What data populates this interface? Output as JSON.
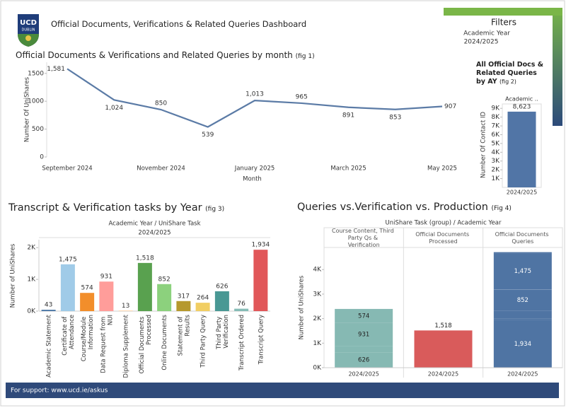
{
  "header": {
    "logo_text": "UCD",
    "logo_subtext": "DUBLIN",
    "title": "Official Documents, Verifications & Related Queries Dashboard"
  },
  "filters": {
    "title": "Filters",
    "label": "Academic Year",
    "value": "2024/2025"
  },
  "chart_data": [
    {
      "type": "line",
      "title": "Official Documents & Verifications and Related Queries by month",
      "figure_label": "(fig 1)",
      "categories": [
        "September 2024",
        null,
        "November 2024",
        null,
        "January 2025",
        null,
        "March 2025",
        null,
        "May 2025"
      ],
      "values": [
        1581,
        1024,
        850,
        539,
        1013,
        965,
        891,
        853,
        907
      ],
      "value_labels": [
        "1,581",
        "1,024",
        "850",
        "539",
        "1,013",
        "965",
        "891",
        "853",
        "907"
      ],
      "color": "#5b7ba6",
      "ylim": [
        0,
        1700
      ],
      "yticks": [
        0,
        500,
        1000,
        1500
      ],
      "y_label": "Number Of UniShares",
      "x_label": "Month"
    },
    {
      "type": "bar",
      "title": "All Official Docs & Related Queries by AY",
      "figure_label": "(fig 2)",
      "column_header": "Academic ..",
      "categories": [
        "2024/2025"
      ],
      "values": [
        8623
      ],
      "value_labels": [
        "8,623"
      ],
      "color": "#5175a6",
      "ylim": [
        0,
        9500
      ],
      "yticks": [
        {
          "value": 1000,
          "label": "1K"
        },
        {
          "value": 2000,
          "label": "2K"
        },
        {
          "value": 3000,
          "label": "3K"
        },
        {
          "value": 4000,
          "label": "4K"
        },
        {
          "value": 5000,
          "label": "5K"
        },
        {
          "value": 6000,
          "label": "6K"
        },
        {
          "value": 7000,
          "label": "7K"
        },
        {
          "value": 8000,
          "label": "8K"
        },
        {
          "value": 9000,
          "label": "9K"
        }
      ],
      "y_label": "Number Of Contact ID"
    },
    {
      "type": "bar",
      "title": "Transcript & Verification tasks by Year",
      "figure_label": "(fig 3)",
      "header": "Academic Year  /  UniShare Task",
      "column_header": "2024/2025",
      "categories": [
        "Academic Statement",
        "Certificate of Attendance",
        "Course/Module Information",
        "Data Request from NUI",
        "Diploma Supplement",
        "Official Documents Processed",
        "Online Documents",
        "Statement of Results",
        "Third Party Query",
        "Third Party Verification",
        "Transcript Ordered",
        "Transcript Query"
      ],
      "values": [
        43,
        1475,
        574,
        931,
        13,
        1518,
        852,
        317,
        264,
        626,
        76,
        1934
      ],
      "value_labels": [
        "43",
        "1,475",
        "574",
        "931",
        "13",
        "1,518",
        "852",
        "317",
        "264",
        "626",
        "76",
        "1,934"
      ],
      "colors": [
        "#4e79a7",
        "#a0cbe8",
        "#f28e2b",
        "#ff9d9a",
        "#ffbe7d",
        "#59a14f",
        "#8cd17d",
        "#b6992d",
        "#f1ce63",
        "#499894",
        "#86bcb6",
        "#e15759"
      ],
      "ylim": [
        0,
        2250
      ],
      "yticks": [
        {
          "value": 0,
          "label": "0K"
        },
        {
          "value": 1000,
          "label": "1K"
        },
        {
          "value": 2000,
          "label": "2K"
        }
      ],
      "y_label": "Number of UniShares"
    },
    {
      "type": "stacked_bar",
      "title": "Queries vs.Verification vs. Production",
      "figure_label": "(Fig 4)",
      "header": "UniShare Task (group)  /  Academic Year",
      "categories": [
        "Course Content, Third Party Qs & Verification",
        "Official Documents Processed",
        "Official Documents Queries"
      ],
      "sub_categories": [
        "2024/2025",
        "2024/2025",
        "2024/2025"
      ],
      "stacks": [
        {
          "color": "#86b9b3",
          "values": [
            626,
            264,
            931,
            574
          ],
          "value_labels": [
            "626",
            null,
            "931",
            "574"
          ]
        },
        {
          "color": "#d95b5b",
          "values": [
            1518
          ],
          "value_labels": [
            "1,518"
          ]
        },
        {
          "color": "#4f74a3",
          "values": [
            1934,
            76,
            317,
            852,
            13,
            1475,
            43
          ],
          "value_labels": [
            "1,934",
            null,
            null,
            "852",
            null,
            "1,475",
            null
          ]
        }
      ],
      "ylim": [
        0,
        4900
      ],
      "yticks": [
        {
          "value": 0,
          "label": "0K"
        },
        {
          "value": 1000,
          "label": "1K"
        },
        {
          "value": 2000,
          "label": "2K"
        },
        {
          "value": 3000,
          "label": "3K"
        },
        {
          "value": 4000,
          "label": "4K"
        }
      ],
      "y_label": "Number of UniShares"
    }
  ],
  "footer": {
    "text": "For support: www.ucd.ie/askus"
  }
}
